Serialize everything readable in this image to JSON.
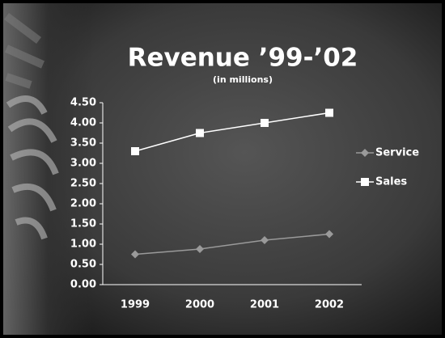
{
  "chart_data": {
    "type": "line",
    "title": "Revenue ’99-’02",
    "subtitle": "(in millions)",
    "categories": [
      "1999",
      "2000",
      "2001",
      "2002"
    ],
    "series": [
      {
        "name": "Service",
        "color": "#9a9a9a",
        "marker": "diamond",
        "values": [
          0.75,
          0.88,
          1.1,
          1.25
        ]
      },
      {
        "name": "Sales",
        "color": "#ffffff",
        "marker": "square",
        "values": [
          3.3,
          3.75,
          4.0,
          4.25
        ]
      }
    ],
    "ylim": [
      0,
      4.5
    ],
    "yticks": [
      {
        "value": 0,
        "label": "0.00"
      },
      {
        "value": 0.5,
        "label": "0.50"
      },
      {
        "value": 1,
        "label": "1.00"
      },
      {
        "value": 1.5,
        "label": "1.50"
      },
      {
        "value": 2,
        "label": "2.00"
      },
      {
        "value": 2.5,
        "label": "2.50"
      },
      {
        "value": 3,
        "label": "3.00"
      },
      {
        "value": 3.5,
        "label": "3.50"
      },
      {
        "value": 4,
        "label": "4.00"
      },
      {
        "value": 4.5,
        "label": "4.50"
      }
    ],
    "grid": false,
    "legend": "right"
  }
}
